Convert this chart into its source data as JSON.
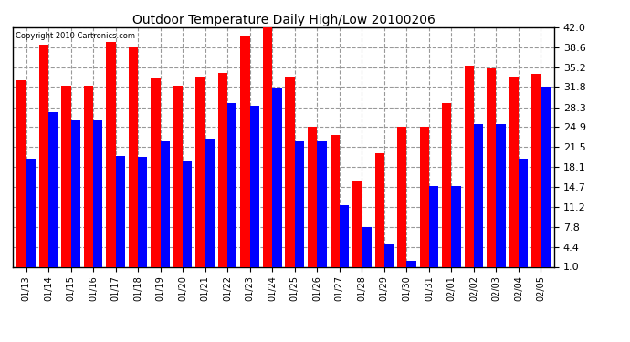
{
  "title": "Outdoor Temperature Daily High/Low 20100206",
  "copyright": "Copyright 2010 Cartronics.com",
  "dates": [
    "01/13",
    "01/14",
    "01/15",
    "01/16",
    "01/17",
    "01/18",
    "01/19",
    "01/20",
    "01/21",
    "01/22",
    "01/23",
    "01/24",
    "01/25",
    "01/26",
    "01/27",
    "01/28",
    "01/29",
    "01/30",
    "01/31",
    "02/01",
    "02/02",
    "02/03",
    "02/04",
    "02/05"
  ],
  "highs": [
    33.0,
    39.0,
    32.0,
    32.0,
    39.5,
    38.6,
    33.2,
    32.0,
    33.5,
    34.2,
    40.5,
    42.0,
    33.5,
    24.9,
    23.5,
    15.8,
    20.5,
    24.9,
    24.9,
    29.0,
    35.5,
    35.0,
    33.5,
    34.0
  ],
  "lows": [
    19.5,
    27.5,
    26.0,
    26.0,
    20.0,
    19.8,
    22.5,
    19.0,
    23.0,
    29.0,
    28.5,
    31.5,
    22.5,
    22.5,
    11.5,
    7.8,
    4.8,
    2.0,
    14.8,
    14.9,
    25.5,
    25.5,
    19.5,
    31.8
  ],
  "high_color": "#ff0000",
  "low_color": "#0000ff",
  "bg_color": "#ffffff",
  "plot_bg_color": "#ffffff",
  "grid_color": "#999999",
  "yticks": [
    1.0,
    4.4,
    7.8,
    11.2,
    14.7,
    18.1,
    21.5,
    24.9,
    28.3,
    31.8,
    35.2,
    38.6,
    42.0
  ],
  "ymin": 1.0,
  "ymax": 42.0,
  "bar_width": 0.42
}
